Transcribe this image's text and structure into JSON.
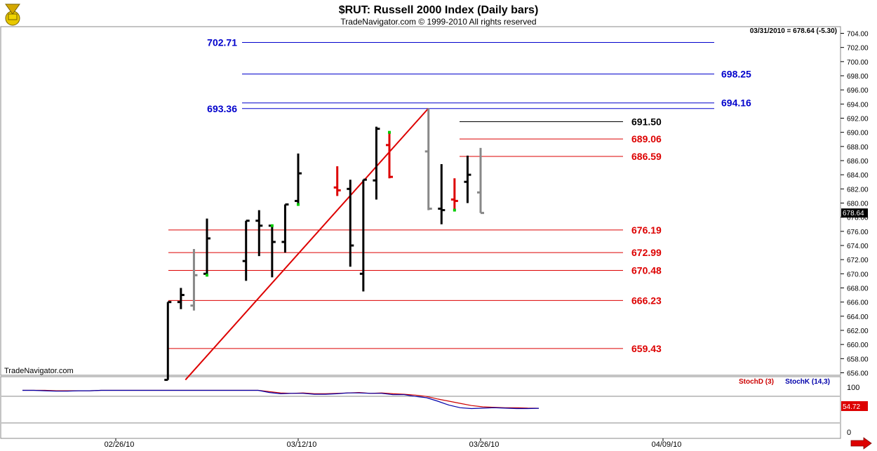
{
  "header": {
    "title": "$RUT:  Russell 2000 Index  (Daily bars)",
    "copyright": "TradeNavigator.com © 1999-2010 All rights reserved",
    "status": "03/31/2010 = 678.64 (-5.30)",
    "watermark": "TradeNavigator.com"
  },
  "colors": {
    "fib_blue": "#0000cc",
    "fib_red": "#dd0000",
    "bar_up": "#000000",
    "bar_down": "#dd0000",
    "bar_gray": "#888888",
    "highlight": "#00cc00",
    "stoch_d": "#cc0000",
    "stoch_k": "#0000aa",
    "last_price_bg": "#000000",
    "stoch_value_bg": "#dd0000"
  },
  "chart_data": {
    "type": "bar",
    "subtype": "ohlc",
    "ylim": [
      655,
      705
    ],
    "y_ticks": [
      "704.00",
      "702.00",
      "700.00",
      "698.00",
      "696.00",
      "694.00",
      "692.00",
      "690.00",
      "688.00",
      "686.00",
      "684.00",
      "682.00",
      "680.00",
      "678.00",
      "676.00",
      "674.00",
      "672.00",
      "670.00",
      "668.00",
      "666.00",
      "664.00",
      "662.00",
      "660.00",
      "658.00",
      "656.00"
    ],
    "x_labels": [
      {
        "label": "02/26/10",
        "date": "2010-02-26"
      },
      {
        "label": "03/12/10",
        "date": "2010-03-12"
      },
      {
        "label": "03/26/10",
        "date": "2010-03-26"
      },
      {
        "label": "04/09/10",
        "date": "2010-04-09"
      }
    ],
    "bars": [
      {
        "date": "2010-03-02",
        "open": 655.0,
        "high": 666.0,
        "low": 655.0,
        "close": 666.0,
        "color": "black"
      },
      {
        "date": "2010-03-03",
        "open": 666.0,
        "high": 668.0,
        "low": 665.0,
        "close": 667.0,
        "color": "black"
      },
      {
        "date": "2010-03-04",
        "open": 665.5,
        "high": 673.5,
        "low": 664.8,
        "close": 669.8,
        "color": "gray"
      },
      {
        "date": "2010-03-05",
        "open": 670.0,
        "high": 677.8,
        "low": 669.8,
        "close": 675.0,
        "color": "black",
        "mark": "low"
      },
      {
        "date": "2010-03-08",
        "open": 671.8,
        "high": 677.5,
        "low": 669.0,
        "close": 677.5,
        "color": "black"
      },
      {
        "date": "2010-03-09",
        "open": 677.5,
        "high": 679.0,
        "low": 672.5,
        "close": 676.8,
        "color": "black"
      },
      {
        "date": "2010-03-10",
        "open": 676.8,
        "high": 676.8,
        "low": 669.5,
        "close": 674.5,
        "color": "black",
        "mark": "high"
      },
      {
        "date": "2010-03-11",
        "open": 674.5,
        "high": 679.8,
        "low": 673.0,
        "close": 679.8,
        "color": "black"
      },
      {
        "date": "2010-03-12",
        "open": 680.3,
        "high": 687.0,
        "low": 679.8,
        "close": 684.2,
        "color": "black",
        "mark": "low"
      },
      {
        "date": "2010-03-15",
        "open": 682.2,
        "high": 685.2,
        "low": 681.0,
        "close": 681.8,
        "color": "red"
      },
      {
        "date": "2010-03-16",
        "open": 682.0,
        "high": 683.3,
        "low": 671.0,
        "close": 674.0,
        "color": "black"
      },
      {
        "date": "2010-03-17",
        "open": 670.0,
        "high": 683.3,
        "low": 667.5,
        "close": 683.3,
        "color": "black"
      },
      {
        "date": "2010-03-18",
        "open": 683.2,
        "high": 690.8,
        "low": 680.5,
        "close": 690.5,
        "color": "black"
      },
      {
        "date": "2010-03-19",
        "open": 688.2,
        "high": 690.0,
        "low": 683.5,
        "close": 683.7,
        "color": "red",
        "mark": "high"
      },
      {
        "date": "2010-03-22",
        "open": 687.3,
        "high": 693.4,
        "low": 679.0,
        "close": 679.2,
        "color": "gray"
      },
      {
        "date": "2010-03-23",
        "open": 679.2,
        "high": 685.5,
        "low": 677.0,
        "close": 679.0,
        "color": "black"
      },
      {
        "date": "2010-03-24",
        "open": 680.5,
        "high": 683.5,
        "low": 679.0,
        "close": 680.3,
        "color": "red",
        "mark": "low"
      },
      {
        "date": "2010-03-25",
        "open": 683.0,
        "high": 686.7,
        "low": 680.0,
        "close": 684.0,
        "color": "black"
      },
      {
        "date": "2010-03-26",
        "open": 681.5,
        "high": 687.8,
        "low": 678.6,
        "close": 678.6,
        "color": "gray"
      }
    ],
    "fib_levels": [
      {
        "value": 702.71,
        "label": "702.71",
        "side": "left",
        "color": "blue"
      },
      {
        "value": 698.25,
        "label": "698.25",
        "side": "right",
        "color": "blue"
      },
      {
        "value": 694.16,
        "label": "694.16",
        "side": "right",
        "color": "blue"
      },
      {
        "value": 693.36,
        "label": "693.36",
        "side": "left",
        "color": "blue"
      },
      {
        "value": 691.5,
        "label": "691.50",
        "side": "right",
        "color": "black"
      },
      {
        "value": 689.06,
        "label": "689.06",
        "side": "right",
        "color": "red"
      },
      {
        "value": 686.59,
        "label": "686.59",
        "side": "right",
        "color": "red"
      },
      {
        "value": 676.19,
        "label": "676.19",
        "side": "right",
        "color": "red"
      },
      {
        "value": 672.99,
        "label": "672.99",
        "side": "right",
        "color": "red"
      },
      {
        "value": 670.48,
        "label": "670.48",
        "side": "right",
        "color": "red"
      },
      {
        "value": 666.23,
        "label": "666.23",
        "side": "right",
        "color": "red"
      },
      {
        "value": 659.43,
        "label": "659.43",
        "side": "right",
        "color": "red"
      }
    ],
    "trendline": {
      "from": {
        "date": "2010-03-02",
        "value": 655.0
      },
      "to": {
        "date": "2010-03-22",
        "value": 693.4
      }
    },
    "last_price": "678.64",
    "stochastic": {
      "legend_d": "StochD (3)",
      "legend_k": "StochK (14,3)",
      "y_ticks": [
        "100",
        "0"
      ],
      "last_value": "54.72",
      "ylim": [
        0,
        110
      ],
      "k": [
        96,
        96,
        95,
        94,
        94,
        95,
        95,
        96,
        96,
        96,
        96,
        96,
        96,
        96,
        96,
        96,
        96,
        96,
        96,
        96,
        96,
        96,
        91,
        88,
        89,
        89,
        87,
        87,
        88,
        90,
        90,
        89,
        89,
        86,
        86,
        82,
        79,
        71,
        62,
        56,
        54,
        55,
        56,
        55,
        54,
        54,
        54.7
      ],
      "d": [
        96,
        96,
        96,
        95,
        95,
        95,
        95,
        96,
        96,
        96,
        96,
        96,
        96,
        96,
        96,
        96,
        96,
        96,
        96,
        96,
        96,
        96,
        93,
        90,
        89,
        90,
        88,
        88,
        89,
        90,
        91,
        89,
        90,
        88,
        87,
        85,
        82,
        76,
        71,
        66,
        61,
        58,
        57,
        56,
        56,
        55,
        54.7
      ]
    }
  }
}
